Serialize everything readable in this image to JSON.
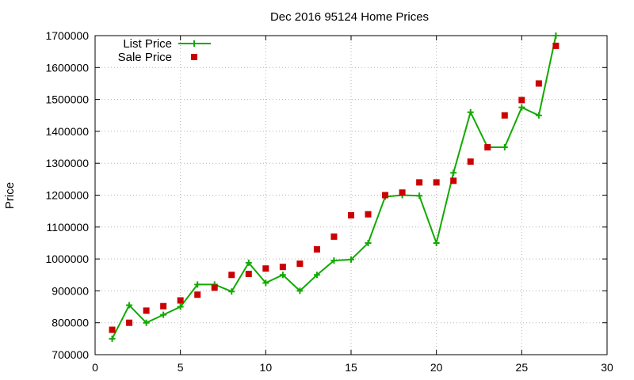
{
  "chart_data": {
    "type": "line",
    "title": "Dec 2016 95124 Home Prices",
    "xlabel": "",
    "ylabel": "Price",
    "xlim": [
      0,
      30
    ],
    "ylim": [
      700000,
      1700000
    ],
    "x_ticks": [
      0,
      5,
      10,
      15,
      20,
      25,
      30
    ],
    "y_ticks": [
      700000,
      800000,
      900000,
      1000000,
      1100000,
      1200000,
      1300000,
      1400000,
      1500000,
      1600000,
      1700000
    ],
    "grid": true,
    "legend_position": "top-left",
    "series": [
      {
        "name": "List Price",
        "style": "linespoints",
        "color": "#11aa00",
        "marker": "plus",
        "x": [
          1,
          2,
          3,
          4,
          5,
          6,
          7,
          8,
          9,
          10,
          11,
          12,
          13,
          14,
          15,
          16,
          17,
          18,
          19,
          20,
          21,
          22,
          23,
          24,
          25,
          26,
          27
        ],
        "y": [
          750000,
          855000,
          800000,
          825000,
          850000,
          920000,
          920000,
          898000,
          988000,
          925000,
          950000,
          900000,
          950000,
          995000,
          998000,
          1050000,
          1195000,
          1200000,
          1198000,
          1050000,
          1270000,
          1460000,
          1350000,
          1350000,
          1475000,
          1450000,
          1700000
        ]
      },
      {
        "name": "Sale Price",
        "style": "points",
        "color": "#cc0000",
        "marker": "square",
        "x": [
          1,
          2,
          3,
          4,
          5,
          6,
          7,
          8,
          9,
          10,
          11,
          12,
          13,
          14,
          15,
          16,
          17,
          18,
          19,
          20,
          21,
          22,
          23,
          24,
          25,
          26,
          27
        ],
        "y": [
          778000,
          800000,
          838000,
          852000,
          870000,
          888000,
          910000,
          950000,
          953000,
          970000,
          975000,
          985000,
          1030000,
          1070000,
          1137000,
          1140000,
          1200000,
          1208000,
          1240000,
          1240000,
          1245000,
          1305000,
          1350000,
          1450000,
          1498000,
          1550000,
          1668000
        ]
      }
    ]
  }
}
